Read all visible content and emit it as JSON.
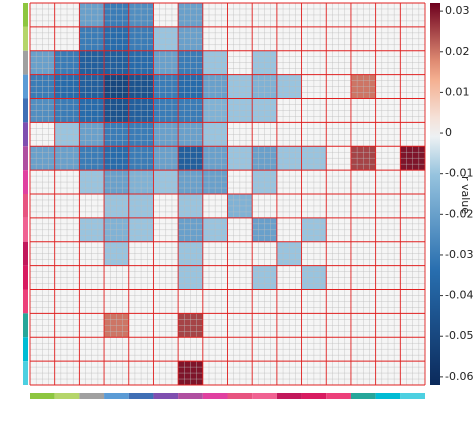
{
  "chart_data": {
    "type": "heatmap",
    "colorbar_label": "r value",
    "clim": [
      -0.062,
      0.032
    ],
    "cticks": [
      0.03,
      0.02,
      0.01,
      0,
      -0.01,
      -0.02,
      -0.03,
      -0.04,
      -0.05,
      -0.06
    ],
    "network_colors": [
      "#8dc63f",
      "#b5d56a",
      "#a0a0a0",
      "#5b9bd5",
      "#3f6fb5",
      "#7f4fb0",
      "#b04fa0",
      "#e040a0",
      "#e75480",
      "#f06292",
      "#c2185b",
      "#d81b60",
      "#ec407a",
      "#26a69a",
      "#00bcd4",
      "#4dd0e1"
    ],
    "matrix": [
      [
        0,
        0,
        -0.02,
        -0.03,
        -0.025,
        0,
        -0.02,
        0,
        0,
        0,
        0,
        0,
        0,
        0,
        0,
        0
      ],
      [
        0,
        0,
        -0.03,
        -0.035,
        -0.03,
        -0.01,
        -0.02,
        0,
        0,
        0,
        0,
        0,
        0,
        0,
        0,
        0
      ],
      [
        -0.02,
        -0.03,
        -0.04,
        -0.04,
        -0.035,
        -0.02,
        -0.03,
        -0.01,
        0,
        -0.01,
        0,
        0,
        0,
        0,
        0,
        0
      ],
      [
        -0.03,
        -0.035,
        -0.04,
        -0.05,
        -0.045,
        -0.03,
        -0.035,
        -0.02,
        -0.01,
        -0.015,
        -0.01,
        0,
        0,
        0.02,
        0,
        0
      ],
      [
        -0.025,
        -0.03,
        -0.035,
        -0.045,
        -0.04,
        -0.03,
        -0.03,
        -0.015,
        -0.01,
        -0.01,
        0,
        0,
        0,
        0,
        0,
        0
      ],
      [
        0,
        -0.01,
        -0.02,
        -0.03,
        -0.03,
        -0.02,
        -0.02,
        -0.01,
        0,
        0,
        0,
        0,
        0,
        0,
        0,
        0
      ],
      [
        -0.02,
        -0.02,
        -0.03,
        -0.035,
        -0.03,
        -0.02,
        -0.04,
        -0.02,
        -0.01,
        -0.02,
        -0.01,
        -0.01,
        0,
        0.025,
        0,
        0.03
      ],
      [
        0,
        0,
        -0.01,
        -0.02,
        -0.015,
        -0.01,
        -0.02,
        -0.02,
        0,
        -0.01,
        0,
        0,
        0,
        0,
        0,
        0
      ],
      [
        0,
        0,
        0,
        -0.01,
        -0.01,
        0,
        -0.01,
        0,
        -0.015,
        0,
        0,
        0,
        0,
        0,
        0,
        0
      ],
      [
        0,
        0,
        -0.01,
        -0.015,
        -0.01,
        0,
        -0.02,
        -0.01,
        0,
        -0.02,
        0,
        -0.01,
        0,
        0,
        0,
        0
      ],
      [
        0,
        0,
        0,
        -0.01,
        0,
        0,
        -0.01,
        0,
        0,
        0,
        -0.01,
        0,
        0,
        0,
        0,
        0
      ],
      [
        0,
        0,
        0,
        0,
        0,
        0,
        -0.01,
        0,
        0,
        -0.01,
        0,
        -0.01,
        0,
        0,
        0,
        0
      ],
      [
        0,
        0,
        0,
        0,
        0,
        0,
        0,
        0,
        0,
        0,
        0,
        0,
        0,
        0,
        0,
        0
      ],
      [
        0,
        0,
        0,
        0.02,
        0,
        0,
        0.025,
        0,
        0,
        0,
        0,
        0,
        0,
        0,
        0,
        0
      ],
      [
        0,
        0,
        0,
        0,
        0,
        0,
        0,
        0,
        0,
        0,
        0,
        0,
        0,
        0,
        0,
        0
      ],
      [
        0,
        0,
        0,
        0,
        0,
        0,
        0.03,
        0,
        0,
        0,
        0,
        0,
        0,
        0,
        0,
        0
      ]
    ]
  }
}
